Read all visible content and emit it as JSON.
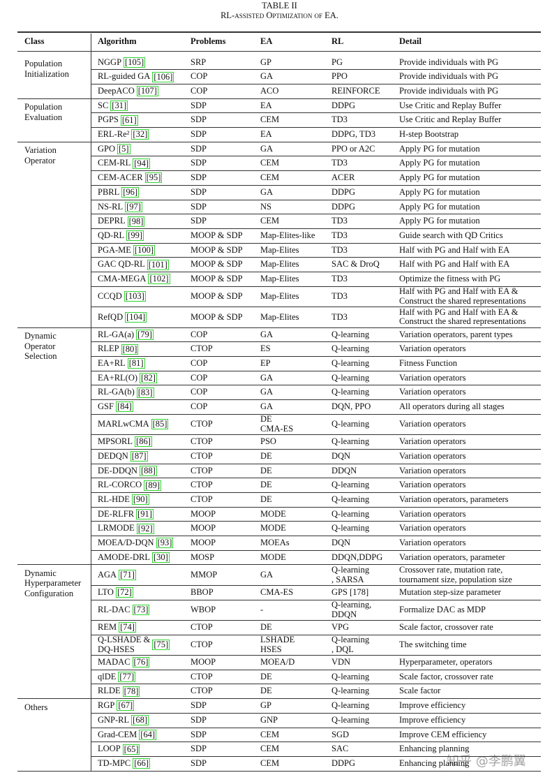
{
  "header": {
    "label": "TABLE II",
    "title": "RL-assisted Optimization of EA."
  },
  "table": {
    "columns": [
      "Class",
      "Algorithm",
      "Problems",
      "EA",
      "RL",
      "Detail"
    ],
    "groups": [
      {
        "class": "Population\nInitialization",
        "rows": [
          [
            "NGGP",
            "[105]",
            "SRP",
            "GP",
            "PG",
            "Provide individuals with PG"
          ],
          [
            "RL-guided GA",
            "[106]",
            "COP",
            "GA",
            "PPO",
            "Provide individuals with PG"
          ],
          [
            "DeepACO",
            "[107]",
            "COP",
            "ACO",
            "REINFORCE",
            "Provide individuals with PG"
          ]
        ]
      },
      {
        "class": "Population\nEvaluation",
        "rows": [
          [
            "SC",
            "[31]",
            "SDP",
            "EA",
            "DDPG",
            "Use Critic and Replay Buffer"
          ],
          [
            "PGPS",
            "[61]",
            "SDP",
            "CEM",
            "TD3",
            "Use Critic and Replay Buffer"
          ],
          [
            "ERL-Re²",
            "[32]",
            "SDP",
            "EA",
            "DDPG, TD3",
            "H-step Bootstrap"
          ]
        ]
      },
      {
        "class": "Variation\nOperator",
        "rows": [
          [
            "GPO",
            "[5]",
            "SDP",
            "GA",
            "PPO or A2C",
            "Apply PG for mutation"
          ],
          [
            "CEM-RL",
            "[94]",
            "SDP",
            "CEM",
            "TD3",
            "Apply PG for mutation"
          ],
          [
            "CEM-ACER",
            "[95]",
            "SDP",
            "CEM",
            "ACER",
            "Apply PG for mutation"
          ],
          [
            "PBRL",
            "[96]",
            "SDP",
            "GA",
            "DDPG",
            "Apply PG for mutation"
          ],
          [
            "NS-RL",
            "[97]",
            "SDP",
            "NS",
            "DDPG",
            "Apply PG for mutation"
          ],
          [
            "DEPRL",
            "[98]",
            "SDP",
            "CEM",
            "TD3",
            "Apply PG for mutation"
          ],
          [
            "QD-RL",
            "[99]",
            "MOOP & SDP",
            "Map-Elites-like",
            "TD3",
            "Guide search with QD Critics"
          ],
          [
            "PGA-ME",
            "[100]",
            "MOOP & SDP",
            "Map-Elites",
            "TD3",
            "Half with PG and Half with EA"
          ],
          [
            "GAC QD-RL",
            "[101]",
            "MOOP & SDP",
            "Map-Elites",
            "SAC & DroQ",
            "Half with PG and Half with EA"
          ],
          [
            "CMA-MEGA",
            "[102]",
            "MOOP & SDP",
            "Map-Elites",
            "TD3",
            "Optimize the fitness with PG"
          ],
          [
            "CCQD",
            "[103]",
            "MOOP & SDP",
            "Map-Elites",
            "TD3",
            "Half with PG and Half with EA &\nConstruct the shared representations"
          ],
          [
            "RefQD",
            "[104]",
            "MOOP & SDP",
            "Map-Elites",
            "TD3",
            "Half with PG and Half with EA &\nConstruct the shared representations"
          ]
        ]
      },
      {
        "class": "Dynamic\nOperator\nSelection",
        "rows": [
          [
            "RL-GA(a)",
            "[79]",
            "COP",
            "GA",
            "Q-learning",
            "Variation operators, parent types"
          ],
          [
            "RLEP",
            "[80]",
            "CTOP",
            "ES",
            "Q-learning",
            "Variation operators"
          ],
          [
            "EA+RL",
            "[81]",
            "COP",
            "EP",
            "Q-learning",
            "Fitness Function"
          ],
          [
            "EA+RL(O)",
            "[82]",
            "COP",
            "GA",
            "Q-learning",
            "Variation operators"
          ],
          [
            "RL-GA(b)",
            "[83]",
            "COP",
            "GA",
            "Q-learning",
            "Variation operators"
          ],
          [
            "GSF",
            "[84]",
            "COP",
            "GA",
            "DQN, PPO",
            "All operators during all stages"
          ],
          [
            "MARLwCMA",
            "[85]",
            "CTOP",
            "DE\nCMA-ES",
            "Q-learning",
            "Variation operators"
          ],
          [
            "MPSORL",
            "[86]",
            "CTOP",
            "PSO",
            "Q-learning",
            "Variation operators"
          ],
          [
            "DEDQN",
            "[87]",
            "CTOP",
            "DE",
            "DQN",
            "Variation operators"
          ],
          [
            "DE-DDQN",
            "[88]",
            "CTOP",
            "DE",
            "DDQN",
            "Variation operators"
          ],
          [
            "RL-CORCO",
            "[89]",
            "CTOP",
            "DE",
            "Q-learning",
            "Variation operators"
          ],
          [
            "RL-HDE",
            "[90]",
            "CTOP",
            "DE",
            "Q-learning",
            "Variation operators, parameters"
          ],
          [
            "DE-RLFR",
            "[91]",
            "MOOP",
            "MODE",
            "Q-learning",
            "Variation operators"
          ],
          [
            "LRMODE",
            "[92]",
            "MOOP",
            "MODE",
            "Q-learning",
            "Variation operators"
          ],
          [
            "MOEA/D-DQN",
            "[93]",
            "MOOP",
            "MOEAs",
            "DQN",
            "Variation operators"
          ],
          [
            "AMODE-DRL",
            "[30]",
            "MOSP",
            "MODE",
            "DDQN,DDPG",
            "Variation operators, parameter"
          ]
        ]
      },
      {
        "class": "Dynamic\nHyperparameter\nConfiguration",
        "rows": [
          [
            "AGA",
            "[71]",
            "MMOP",
            "GA",
            "Q-learning\n, SARSA",
            "Crossover rate, mutation rate,\ntournament size, population size"
          ],
          [
            "LTO",
            "[72]",
            "BBOP",
            "CMA-ES",
            "GPS [178]",
            "Mutation step-size parameter"
          ],
          [
            "RL-DAC",
            "[73]",
            "WBOP",
            "-",
            "Q-learning,\nDDQN",
            "Formalize DAC as MDP"
          ],
          [
            "REM",
            "[74]",
            "CTOP",
            "DE",
            "VPG",
            "Scale factor, crossover rate"
          ],
          [
            "Q-LSHADE &\nDQ-HSES",
            "[75]",
            "CTOP",
            "LSHADE\nHSES",
            "Q-learning\n, DQL",
            "The switching time"
          ],
          [
            "MADAC",
            "[76]",
            "MOOP",
            "MOEA/D",
            "VDN",
            "Hyperparameter, operators"
          ],
          [
            "qlDE",
            "[77]",
            "CTOP",
            "DE",
            "Q-learning",
            "Scale factor, crossover rate"
          ],
          [
            "RLDE",
            "[78]",
            "CTOP",
            "DE",
            "Q-learning",
            "Scale factor"
          ]
        ]
      },
      {
        "class": "Others",
        "rows": [
          [
            "RGP",
            "[67]",
            "SDP",
            "GP",
            "Q-learning",
            "Improve efficiency"
          ],
          [
            "GNP-RL",
            "[68]",
            "SDP",
            "GNP",
            "Q-learning",
            "Improve efficiency"
          ],
          [
            "Grad-CEM",
            "[64]",
            "SDP",
            "CEM",
            "SGD",
            "Improve CEM efficiency"
          ],
          [
            "LOOP",
            "[65]",
            "SDP",
            "CEM",
            "SAC",
            "Enhancing planning"
          ],
          [
            "TD-MPC",
            "[66]",
            "SDP",
            "CEM",
            "DDPG",
            "Enhancing planning"
          ]
        ]
      }
    ]
  },
  "watermark": "知乎 @李鹏翼"
}
